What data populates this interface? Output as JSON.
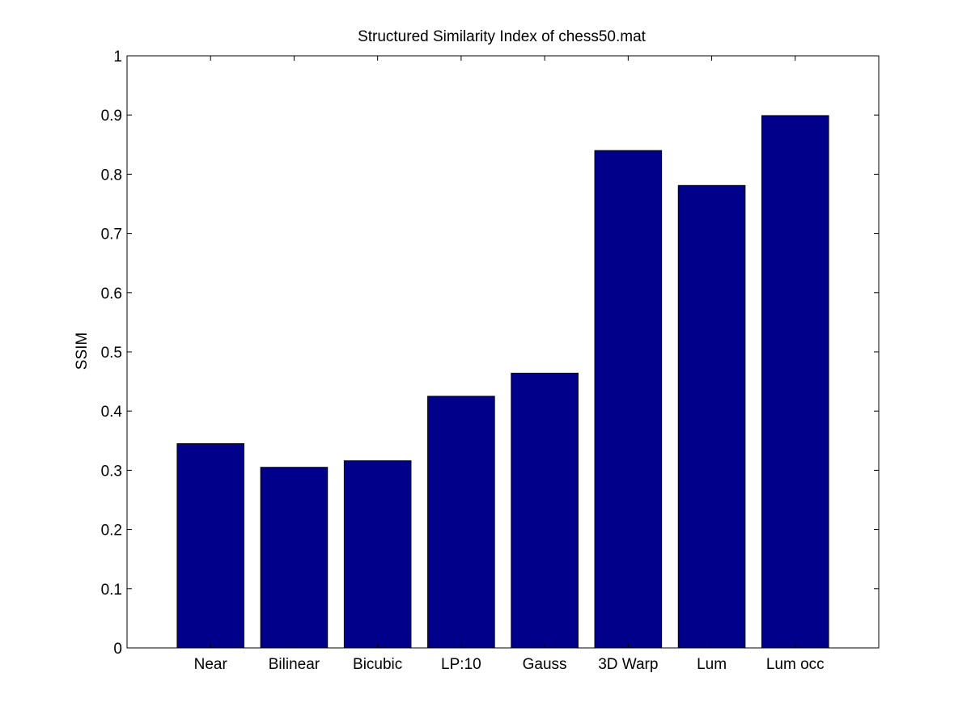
{
  "chart_data": {
    "type": "bar",
    "title": "Structured Similarity Index of chess50.mat",
    "xlabel": "",
    "ylabel": "SSIM",
    "categories": [
      "Near",
      "Bilinear",
      "Bicubic",
      "LP:10",
      "Gauss",
      "3D Warp",
      "Lum",
      "Lum occ"
    ],
    "values": [
      0.345,
      0.305,
      0.316,
      0.425,
      0.464,
      0.84,
      0.781,
      0.899
    ],
    "ylim": [
      0,
      1
    ],
    "yticks": [
      "0",
      "0.1",
      "0.2",
      "0.3",
      "0.4",
      "0.5",
      "0.6",
      "0.7",
      "0.8",
      "0.9",
      "1"
    ],
    "grid": false,
    "bar_color": "#00008B"
  }
}
